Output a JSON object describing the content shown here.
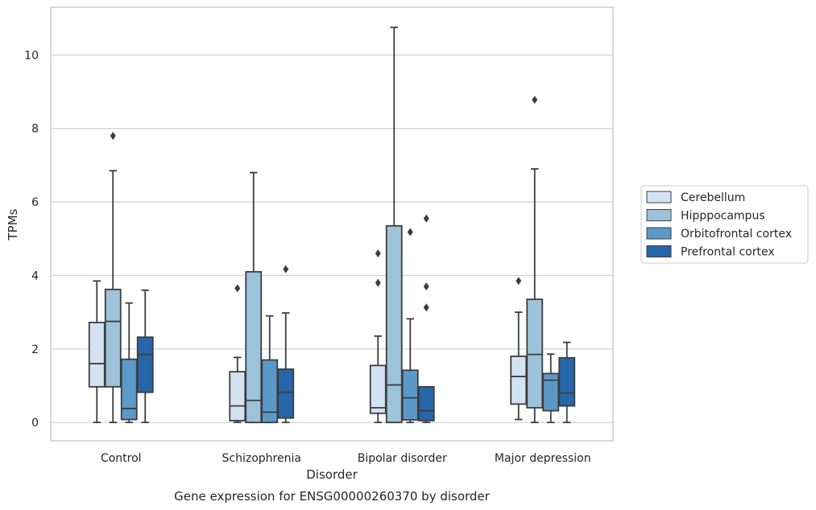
{
  "chart_data": {
    "type": "boxplot",
    "title": "Gene expression for ENSG00000260370 by disorder",
    "xlabel": "Disorder",
    "ylabel": "TPMs",
    "ylim": [
      -0.5,
      11.3
    ],
    "yticks": [
      0,
      2,
      4,
      6,
      8,
      10
    ],
    "grid": "horizontal",
    "legend_position": "right",
    "categories": [
      "Control",
      "Schizophrenia",
      "Bipolar disorder",
      "Major depression"
    ],
    "series": [
      {
        "name": "Cerebellum",
        "color": "#d4e3f2",
        "boxes": [
          {
            "whisker_low": 0,
            "q1": 0.97,
            "median": 1.6,
            "q3": 2.72,
            "whisker_high": 3.85,
            "outliers": []
          },
          {
            "whisker_low": 0,
            "q1": 0.05,
            "median": 0.45,
            "q3": 1.38,
            "whisker_high": 1.77,
            "outliers": [
              3.65
            ]
          },
          {
            "whisker_low": 0,
            "q1": 0.25,
            "median": 0.4,
            "q3": 1.55,
            "whisker_high": 2.35,
            "outliers": [
              3.8,
              4.6
            ]
          },
          {
            "whisker_low": 0.08,
            "q1": 0.5,
            "median": 1.25,
            "q3": 1.8,
            "whisker_high": 3.0,
            "outliers": [
              3.85
            ]
          }
        ]
      },
      {
        "name": "Hipppocampus",
        "color": "#9dc3db",
        "boxes": [
          {
            "whisker_low": 0,
            "q1": 0.97,
            "median": 2.75,
            "q3": 3.62,
            "whisker_high": 6.85,
            "outliers": [
              7.8
            ]
          },
          {
            "whisker_low": 0,
            "q1": 0,
            "median": 0.6,
            "q3": 4.1,
            "whisker_high": 6.8,
            "outliers": []
          },
          {
            "whisker_low": 0,
            "q1": 0,
            "median": 1.02,
            "q3": 5.35,
            "whisker_high": 10.75,
            "outliers": []
          },
          {
            "whisker_low": 0,
            "q1": 0.4,
            "median": 1.85,
            "q3": 3.35,
            "whisker_high": 6.9,
            "outliers": [
              8.78
            ]
          }
        ]
      },
      {
        "name": "Orbitofrontal cortex",
        "color": "#5b9ac8",
        "boxes": [
          {
            "whisker_low": 0,
            "q1": 0.08,
            "median": 0.38,
            "q3": 1.72,
            "whisker_high": 3.25,
            "outliers": []
          },
          {
            "whisker_low": 0,
            "q1": 0,
            "median": 0.28,
            "q3": 1.7,
            "whisker_high": 2.9,
            "outliers": []
          },
          {
            "whisker_low": 0,
            "q1": 0.07,
            "median": 0.67,
            "q3": 1.42,
            "whisker_high": 2.82,
            "outliers": [
              5.18
            ]
          },
          {
            "whisker_low": 0,
            "q1": 0.32,
            "median": 1.15,
            "q3": 1.33,
            "whisker_high": 1.86,
            "outliers": []
          }
        ]
      },
      {
        "name": "Prefrontal cortex",
        "color": "#2766a8",
        "boxes": [
          {
            "whisker_low": 0,
            "q1": 0.82,
            "median": 1.85,
            "q3": 2.32,
            "whisker_high": 3.6,
            "outliers": []
          },
          {
            "whisker_low": 0,
            "q1": 0.12,
            "median": 0.82,
            "q3": 1.45,
            "whisker_high": 2.98,
            "outliers": [
              4.17
            ]
          },
          {
            "whisker_low": 0,
            "q1": 0.05,
            "median": 0.32,
            "q3": 0.97,
            "whisker_high": 0.97,
            "outliers": [
              3.13,
              3.7,
              5.55
            ]
          },
          {
            "whisker_low": 0,
            "q1": 0.45,
            "median": 0.8,
            "q3": 1.76,
            "whisker_high": 2.18,
            "outliers": []
          }
        ]
      }
    ]
  }
}
